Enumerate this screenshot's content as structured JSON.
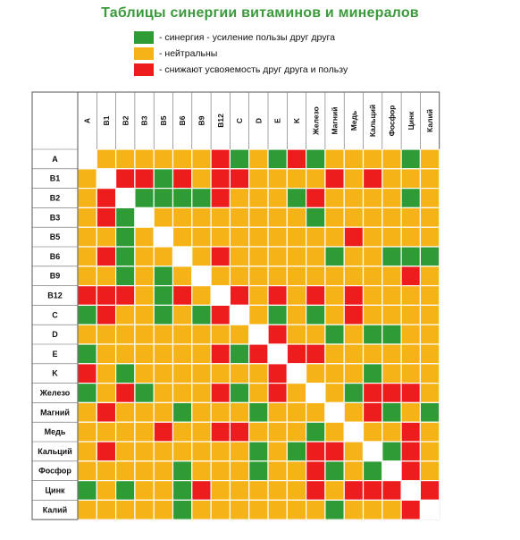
{
  "title": "Таблицы синергии витаминов и минералов",
  "legend": [
    {
      "label": "- синергия - усиление пользы друг друга",
      "color": "#2f9b34"
    },
    {
      "label": "- нейтральны",
      "color": "#f5b317"
    },
    {
      "label": "- снижают усвояемость друг друга и пользу",
      "color": "#ee1d1d"
    }
  ],
  "chart_data": {
    "type": "heatmap",
    "categories": [
      "A",
      "B1",
      "B2",
      "B3",
      "B5",
      "B6",
      "B9",
      "B12",
      "C",
      "D",
      "E",
      "K",
      "Железо",
      "Магний",
      "Медь",
      "Кальций",
      "Фосфор",
      "Цинк",
      "Калий"
    ],
    "column_labels": [
      "A",
      "B1",
      "B2",
      "B3",
      "B5",
      "B6",
      "B9",
      "B12",
      "C",
      "D",
      "E",
      "K",
      "Железо",
      "Магний",
      "Медь",
      "Кальций",
      "Фосфор",
      "Цинк",
      "Калий"
    ],
    "row_labels": [
      "A",
      "B1",
      "B2",
      "B3",
      "B5",
      "B6",
      "B9",
      "B12",
      "C",
      "D",
      "E",
      "K",
      "Железо",
      "Магний",
      "Медь",
      "Кальций",
      "Фосфор",
      "Цинк",
      "Калий"
    ],
    "value_legend": {
      "S": "синергия",
      "N": "нейтральны",
      "R": "снижают усвояемость",
      "X": "—"
    },
    "colors": {
      "S": "#2f9b34",
      "N": "#f5b317",
      "R": "#ee1d1d",
      "X": "#ffffff"
    },
    "matrix": [
      [
        "X",
        "N",
        "N",
        "N",
        "N",
        "N",
        "N",
        "R",
        "S",
        "N",
        "S",
        "R",
        "S",
        "N",
        "N",
        "N",
        "N",
        "S",
        "N"
      ],
      [
        "N",
        "X",
        "R",
        "R",
        "S",
        "R",
        "N",
        "R",
        "R",
        "N",
        "N",
        "N",
        "N",
        "R",
        "N",
        "R",
        "N",
        "N",
        "N"
      ],
      [
        "N",
        "R",
        "X",
        "S",
        "S",
        "S",
        "S",
        "R",
        "N",
        "N",
        "N",
        "S",
        "R",
        "N",
        "N",
        "N",
        "N",
        "S",
        "N"
      ],
      [
        "N",
        "R",
        "S",
        "X",
        "N",
        "N",
        "N",
        "N",
        "N",
        "N",
        "N",
        "N",
        "S",
        "N",
        "N",
        "N",
        "N",
        "N",
        "N"
      ],
      [
        "N",
        "N",
        "S",
        "N",
        "X",
        "N",
        "N",
        "N",
        "N",
        "N",
        "N",
        "N",
        "N",
        "N",
        "R",
        "N",
        "N",
        "N",
        "N"
      ],
      [
        "N",
        "R",
        "S",
        "N",
        "N",
        "X",
        "N",
        "R",
        "N",
        "N",
        "N",
        "N",
        "N",
        "S",
        "N",
        "N",
        "S",
        "S",
        "S"
      ],
      [
        "N",
        "N",
        "S",
        "N",
        "S",
        "N",
        "X",
        "N",
        "N",
        "N",
        "N",
        "N",
        "N",
        "N",
        "N",
        "N",
        "N",
        "R",
        "N"
      ],
      [
        "R",
        "R",
        "R",
        "N",
        "S",
        "R",
        "N",
        "X",
        "R",
        "N",
        "R",
        "N",
        "R",
        "N",
        "R",
        "N",
        "N",
        "N",
        "N"
      ],
      [
        "S",
        "R",
        "N",
        "N",
        "S",
        "N",
        "S",
        "R",
        "X",
        "N",
        "S",
        "N",
        "S",
        "N",
        "R",
        "N",
        "N",
        "N",
        "N"
      ],
      [
        "N",
        "N",
        "N",
        "N",
        "N",
        "N",
        "N",
        "N",
        "N",
        "X",
        "R",
        "N",
        "N",
        "S",
        "N",
        "S",
        "S",
        "N",
        "N"
      ],
      [
        "S",
        "N",
        "N",
        "N",
        "N",
        "N",
        "N",
        "R",
        "S",
        "R",
        "X",
        "R",
        "R",
        "N",
        "N",
        "N",
        "N",
        "N",
        "N"
      ],
      [
        "R",
        "N",
        "S",
        "N",
        "N",
        "N",
        "N",
        "N",
        "N",
        "N",
        "R",
        "X",
        "N",
        "N",
        "N",
        "S",
        "N",
        "N",
        "N"
      ],
      [
        "S",
        "N",
        "R",
        "S",
        "N",
        "N",
        "N",
        "R",
        "S",
        "N",
        "R",
        "N",
        "X",
        "N",
        "S",
        "R",
        "R",
        "R",
        "N"
      ],
      [
        "N",
        "R",
        "N",
        "N",
        "N",
        "S",
        "N",
        "N",
        "N",
        "S",
        "N",
        "N",
        "N",
        "X",
        "N",
        "R",
        "S",
        "N",
        "S"
      ],
      [
        "N",
        "N",
        "N",
        "N",
        "R",
        "N",
        "N",
        "R",
        "R",
        "N",
        "N",
        "N",
        "S",
        "N",
        "X",
        "N",
        "N",
        "R",
        "N"
      ],
      [
        "N",
        "R",
        "N",
        "N",
        "N",
        "N",
        "N",
        "N",
        "N",
        "S",
        "N",
        "S",
        "R",
        "R",
        "N",
        "X",
        "S",
        "R",
        "N"
      ],
      [
        "N",
        "N",
        "N",
        "N",
        "N",
        "S",
        "N",
        "N",
        "N",
        "S",
        "N",
        "N",
        "R",
        "S",
        "N",
        "S",
        "X",
        "R",
        "N"
      ],
      [
        "S",
        "N",
        "S",
        "N",
        "N",
        "S",
        "R",
        "N",
        "N",
        "N",
        "N",
        "N",
        "R",
        "N",
        "R",
        "R",
        "R",
        "X",
        "R"
      ],
      [
        "N",
        "N",
        "N",
        "N",
        "N",
        "S",
        "N",
        "N",
        "N",
        "N",
        "N",
        "N",
        "N",
        "S",
        "N",
        "N",
        "N",
        "R",
        "X"
      ]
    ]
  }
}
